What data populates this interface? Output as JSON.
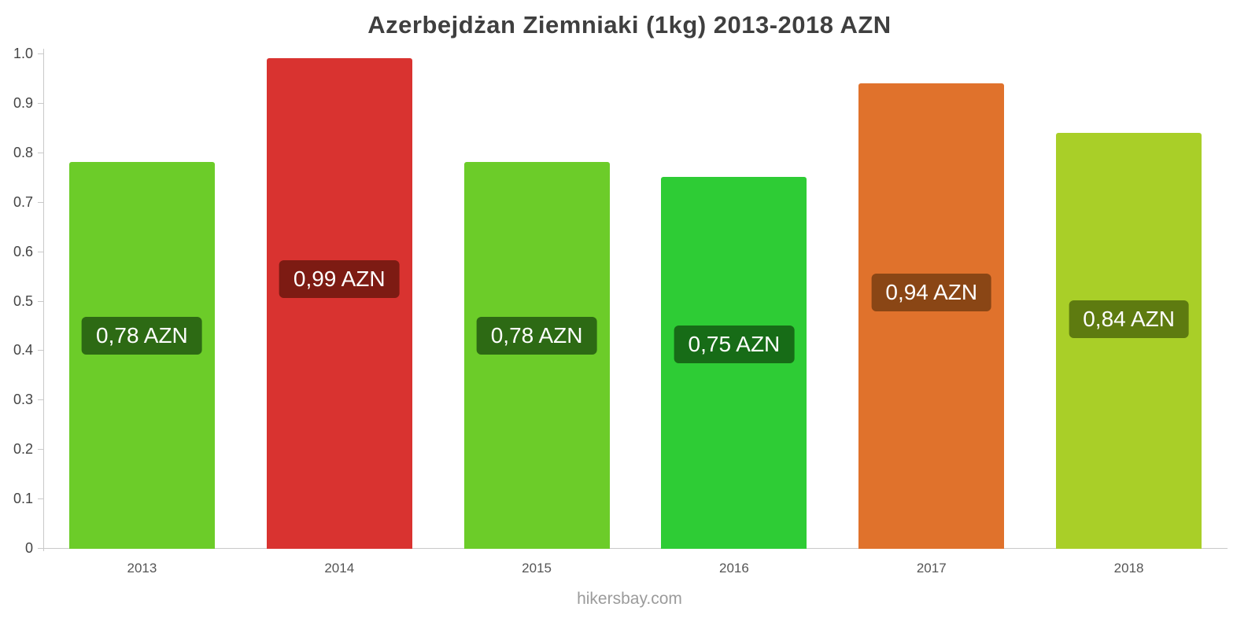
{
  "chart_data": {
    "type": "bar",
    "title": "Azerbejdżan Ziemniaki (1kg) 2013-2018 AZN",
    "categories": [
      "2013",
      "2014",
      "2015",
      "2016",
      "2017",
      "2018"
    ],
    "values": [
      0.78,
      0.99,
      0.78,
      0.75,
      0.94,
      0.84
    ],
    "bar_labels": [
      "0,78 AZN",
      "0,99 AZN",
      "0,78 AZN",
      "0,75 AZN",
      "0,94 AZN",
      "0,84 AZN"
    ],
    "bar_colors": [
      "#6ccc29",
      "#d93330",
      "#6ccc29",
      "#2ecc35",
      "#e0722c",
      "#a9cf28"
    ],
    "label_bg_colors": [
      "#2d6a14",
      "#7d1b13",
      "#2d6a14",
      "#176c17",
      "#8a4615",
      "#5e7b10"
    ],
    "xlabel": "",
    "ylabel": "",
    "ylim": [
      0,
      1.0
    ],
    "yticks": [
      0,
      0.1,
      0.2,
      0.3,
      0.4,
      0.5,
      0.6,
      0.7,
      0.8,
      0.9,
      1.0
    ],
    "ytick_labels": [
      "0",
      "0.1",
      "0.2",
      "0.3",
      "0.4",
      "0.5",
      "0.6",
      "0.7",
      "0.8",
      "0.9",
      "1.0"
    ],
    "grid": false,
    "legend": false
  },
  "footer": {
    "text": "hikersbay.com"
  }
}
